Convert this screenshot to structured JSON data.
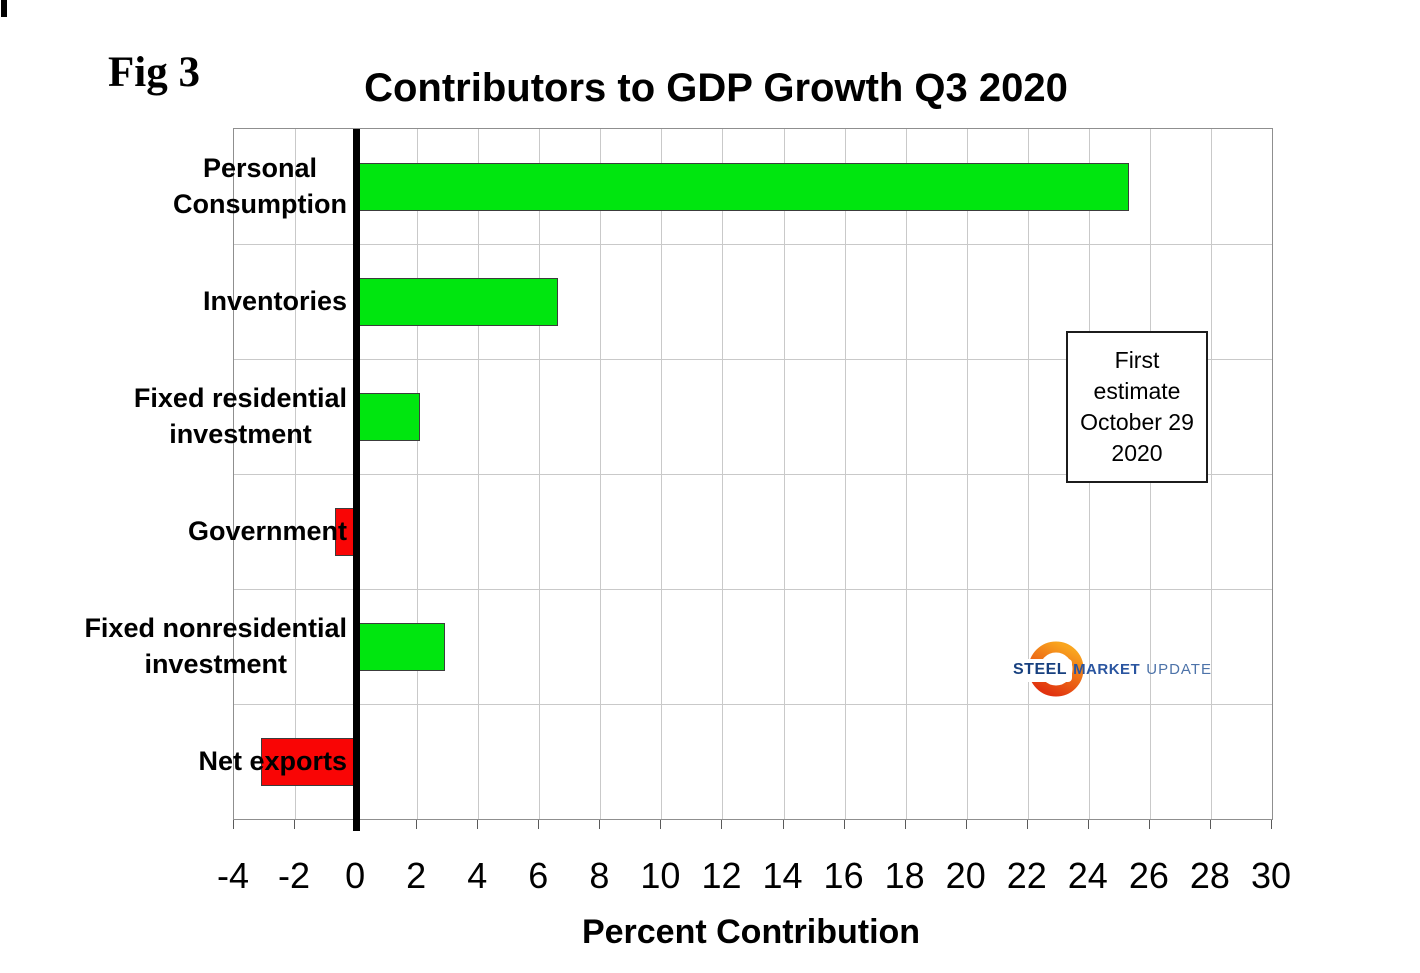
{
  "figure": {
    "fig_label": "Fig 3"
  },
  "chart_data": {
    "type": "bar",
    "orientation": "horizontal",
    "title": "Contributors to GDP Growth Q3 2020",
    "xlabel": "Percent Contribution",
    "ylabel": "",
    "categories": [
      "Personal Consumption",
      "Inventories",
      "Fixed residential investment",
      "Government",
      "Fixed nonresidential investment",
      "Net exports"
    ],
    "category_display": [
      "Personal\nConsumption",
      "Inventories",
      "Fixed residential\ninvestment",
      "Government",
      "Fixed nonresidential\ninvestment",
      "Net exports"
    ],
    "values": [
      25.3,
      6.6,
      2.1,
      -0.7,
      2.9,
      -3.1
    ],
    "xlim": [
      -4,
      30
    ],
    "x_tick_step": 2,
    "x_ticks": [
      -4,
      -2,
      0,
      2,
      4,
      6,
      8,
      10,
      12,
      14,
      16,
      18,
      20,
      22,
      24,
      26,
      28,
      30
    ],
    "grid": true,
    "legend": "none",
    "positive_color": "#00e60f",
    "negative_color": "#f90505",
    "bar_border_color": "#3c3c3c"
  },
  "annotation": {
    "lines": [
      "First",
      "estimate",
      "October 29",
      "2020"
    ]
  },
  "logo": {
    "steel": "STEEL",
    "market": "MARKET",
    "update": "UPDATE",
    "crescent_color_top": "#f9a51f",
    "crescent_color_bottom": "#e1330f"
  }
}
